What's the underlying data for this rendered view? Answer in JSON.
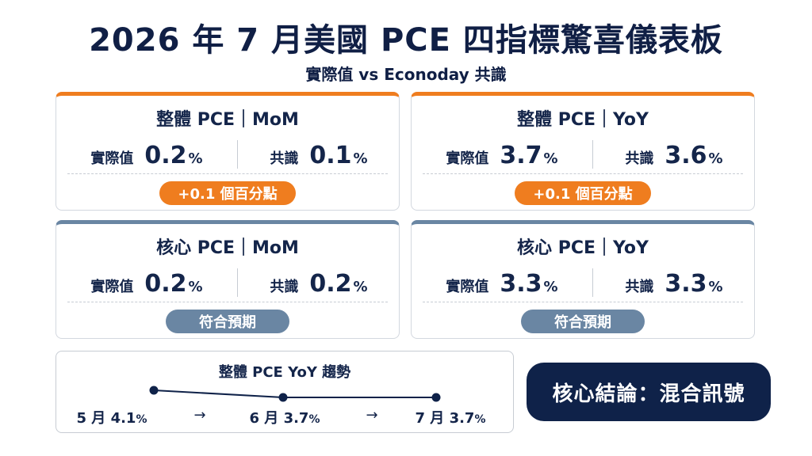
{
  "title": "2026 年 7 月美國 PCE 四指標驚喜儀表板",
  "subtitle": "實際值 vs Econoday 共識",
  "cards": [
    {
      "title": "整體 PCE｜MoM",
      "actual_label": "實際值",
      "actual": "0.2",
      "actual_unit": "%",
      "consensus_label": "共識",
      "consensus": "0.1",
      "consensus_unit": "%",
      "badge": "+0.1 個百分點",
      "badge_color": "#ef7d1f"
    },
    {
      "title": "整體 PCE｜YoY",
      "actual_label": "實際值",
      "actual": "3.7",
      "actual_unit": "%",
      "consensus_label": "共識",
      "consensus": "3.6",
      "consensus_unit": "%",
      "badge": "+0.1 個百分點",
      "badge_color": "#ef7d1f"
    },
    {
      "title": "核心 PCE｜MoM",
      "actual_label": "實際值",
      "actual": "0.2",
      "actual_unit": "%",
      "consensus_label": "共識",
      "consensus": "0.2",
      "consensus_unit": "%",
      "badge": "符合預期",
      "badge_color": "#6a86a3"
    },
    {
      "title": "核心 PCE｜YoY",
      "actual_label": "實際值",
      "actual": "3.3",
      "actual_unit": "%",
      "consensus_label": "共識",
      "consensus": "3.3",
      "consensus_unit": "%",
      "badge": "符合預期",
      "badge_color": "#6a86a3"
    }
  ],
  "trend": {
    "title": "整體 PCE YoY 趨勢",
    "points": [
      {
        "label": "5 月 4.1",
        "unit": "%",
        "value": 4.1
      },
      {
        "label": "6 月 3.7",
        "unit": "%",
        "value": 3.7
      },
      {
        "label": "7 月 3.7",
        "unit": "%",
        "value": 3.7
      }
    ],
    "arrow": "→"
  },
  "conclusion": "核心結論：混合訊號",
  "colors": {
    "navy": "#0f2249",
    "orange": "#ef7d1f",
    "slate": "#6a86a3"
  }
}
